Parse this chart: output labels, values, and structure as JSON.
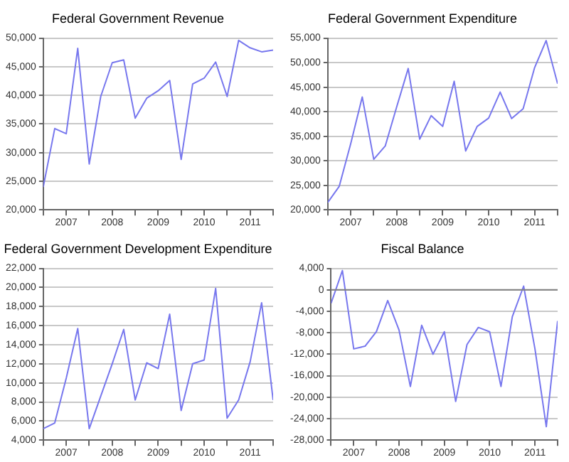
{
  "chart_data": [
    {
      "type": "line",
      "title": "Federal Government Revenue",
      "x": [
        2006.5,
        2006.75,
        2007,
        2007.25,
        2007.5,
        2007.75,
        2008,
        2008.25,
        2008.5,
        2008.75,
        2009,
        2009.25,
        2009.5,
        2009.75,
        2010,
        2010.25,
        2010.5,
        2010.75,
        2011,
        2011.25,
        2011.5
      ],
      "series": [
        {
          "color": "#7777ee",
          "values": [
            24000,
            34200,
            33300,
            48200,
            28000,
            39800,
            45700,
            46200,
            36000,
            39500,
            40800,
            42600,
            28800,
            42000,
            43000,
            45800,
            39800,
            49600,
            48300,
            47600,
            47900
          ]
        }
      ],
      "xlim": [
        2006.5,
        2011.5
      ],
      "xticks": [
        {
          "value": 2006.5,
          "label": null
        },
        2007,
        {
          "value": 2007.5,
          "label": null
        },
        2008,
        {
          "value": 2008.5,
          "label": null
        },
        2009,
        {
          "value": 2009.5,
          "label": null
        },
        2010,
        {
          "value": 2010.5,
          "label": null
        },
        2011,
        {
          "value": 2011.5,
          "label": null
        }
      ],
      "ylim": [
        20000,
        50000
      ],
      "yticks": [
        {
          "value": 20000,
          "label": "20,000"
        },
        {
          "value": 25000,
          "label": "25,000"
        },
        {
          "value": 30000,
          "label": "30,000"
        },
        {
          "value": 35000,
          "label": "35,000"
        },
        {
          "value": 40000,
          "label": "40,000"
        },
        {
          "value": 45000,
          "label": "45,000"
        },
        {
          "value": 50000,
          "label": "50,000"
        }
      ],
      "grid": "y",
      "legend": false,
      "marker": "none"
    },
    {
      "type": "line",
      "title": "Federal Government Expenditure",
      "x": [
        2006.5,
        2006.75,
        2007,
        2007.25,
        2007.5,
        2007.75,
        2008,
        2008.25,
        2008.5,
        2008.75,
        2009,
        2009.25,
        2009.5,
        2009.75,
        2010,
        2010.25,
        2010.5,
        2010.75,
        2011,
        2011.25,
        2011.5
      ],
      "series": [
        {
          "color": "#7777ee",
          "values": [
            21500,
            24800,
            33500,
            43000,
            30300,
            33000,
            41000,
            48800,
            34400,
            39200,
            37000,
            46200,
            32000,
            37000,
            38700,
            44000,
            38600,
            40600,
            49000,
            54500,
            45700
          ]
        }
      ],
      "xlim": [
        2006.5,
        2011.5
      ],
      "xticks": [
        {
          "value": 2006.5,
          "label": null
        },
        2007,
        {
          "value": 2007.5,
          "label": null
        },
        2008,
        {
          "value": 2008.5,
          "label": null
        },
        2009,
        {
          "value": 2009.5,
          "label": null
        },
        2010,
        {
          "value": 2010.5,
          "label": null
        },
        2011,
        {
          "value": 2011.5,
          "label": null
        }
      ],
      "ylim": [
        20000,
        55000
      ],
      "yticks": [
        {
          "value": 20000,
          "label": "20,000"
        },
        {
          "value": 25000,
          "label": "25,000"
        },
        {
          "value": 30000,
          "label": "30,000"
        },
        {
          "value": 35000,
          "label": "35,000"
        },
        {
          "value": 40000,
          "label": "40,000"
        },
        {
          "value": 45000,
          "label": "45,000"
        },
        {
          "value": 50000,
          "label": "50,000"
        },
        {
          "value": 55000,
          "label": "55,000"
        }
      ],
      "grid": "y",
      "legend": false,
      "marker": "none"
    },
    {
      "type": "line",
      "title": "Federal Government Development Expenditure",
      "x": [
        2006.5,
        2006.75,
        2007,
        2007.25,
        2007.5,
        2007.75,
        2008,
        2008.25,
        2008.5,
        2008.75,
        2009,
        2009.25,
        2009.5,
        2009.75,
        2010,
        2010.25,
        2010.5,
        2010.75,
        2011,
        2011.25,
        2011.5
      ],
      "series": [
        {
          "color": "#7777ee",
          "values": [
            5200,
            5800,
            10500,
            15700,
            5200,
            8600,
            12000,
            15600,
            8200,
            12100,
            11500,
            17200,
            7100,
            12000,
            12400,
            19900,
            6300,
            8200,
            12200,
            18400,
            8200
          ]
        }
      ],
      "xlim": [
        2006.5,
        2011.5
      ],
      "xticks": [
        {
          "value": 2006.5,
          "label": null
        },
        2007,
        {
          "value": 2007.5,
          "label": null
        },
        2008,
        {
          "value": 2008.5,
          "label": null
        },
        2009,
        {
          "value": 2009.5,
          "label": null
        },
        2010,
        {
          "value": 2010.5,
          "label": null
        },
        2011,
        {
          "value": 2011.5,
          "label": null
        }
      ],
      "ylim": [
        4000,
        22000
      ],
      "yticks": [
        {
          "value": 4000,
          "label": "4,000"
        },
        {
          "value": 6000,
          "label": "6,000"
        },
        {
          "value": 8000,
          "label": "8,000"
        },
        {
          "value": 10000,
          "label": "10,000"
        },
        {
          "value": 12000,
          "label": "12,000"
        },
        {
          "value": 14000,
          "label": "14,000"
        },
        {
          "value": 16000,
          "label": "16,000"
        },
        {
          "value": 18000,
          "label": "18,000"
        },
        {
          "value": 20000,
          "label": "20,000"
        },
        {
          "value": 22000,
          "label": "22,000"
        }
      ],
      "grid": "y",
      "legend": false,
      "marker": "none"
    },
    {
      "type": "line",
      "title": "Fiscal Balance",
      "x": [
        2006.5,
        2006.75,
        2007,
        2007.25,
        2007.5,
        2007.75,
        2008,
        2008.25,
        2008.5,
        2008.75,
        2009,
        2009.25,
        2009.5,
        2009.75,
        2010,
        2010.25,
        2010.5,
        2010.75,
        2011,
        2011.25,
        2011.5
      ],
      "series": [
        {
          "color": "#7777ee",
          "values": [
            -2500,
            3600,
            -11000,
            -10500,
            -7800,
            -2000,
            -7500,
            -18000,
            -6600,
            -12000,
            -7800,
            -20800,
            -10200,
            -7000,
            -7800,
            -18000,
            -5000,
            700,
            -11000,
            -25500,
            -5800
          ]
        }
      ],
      "xlim": [
        2006.5,
        2011.5
      ],
      "xticks": [
        {
          "value": 2006.5,
          "label": null
        },
        2007,
        {
          "value": 2007.5,
          "label": null
        },
        2008,
        {
          "value": 2008.5,
          "label": null
        },
        2009,
        {
          "value": 2009.5,
          "label": null
        },
        2010,
        {
          "value": 2010.5,
          "label": null
        },
        2011,
        {
          "value": 2011.5,
          "label": null
        }
      ],
      "ylim": [
        -28000,
        4000
      ],
      "yticks": [
        {
          "value": -28000,
          "label": "-28,000"
        },
        {
          "value": -24000,
          "label": "-24,000"
        },
        {
          "value": -20000,
          "label": "-20,000"
        },
        {
          "value": -16000,
          "label": "-16,000"
        },
        {
          "value": -12000,
          "label": "-12,000"
        },
        {
          "value": -8000,
          "label": "-8,000"
        },
        {
          "value": -4000,
          "label": "-4,000"
        },
        {
          "value": 0,
          "label": "0"
        },
        {
          "value": 4000,
          "label": "4,000"
        }
      ],
      "ref_lines": [
        {
          "axis": "y",
          "value": 0,
          "color": "#808080"
        }
      ],
      "grid": "y",
      "legend": false,
      "marker": "none"
    }
  ]
}
